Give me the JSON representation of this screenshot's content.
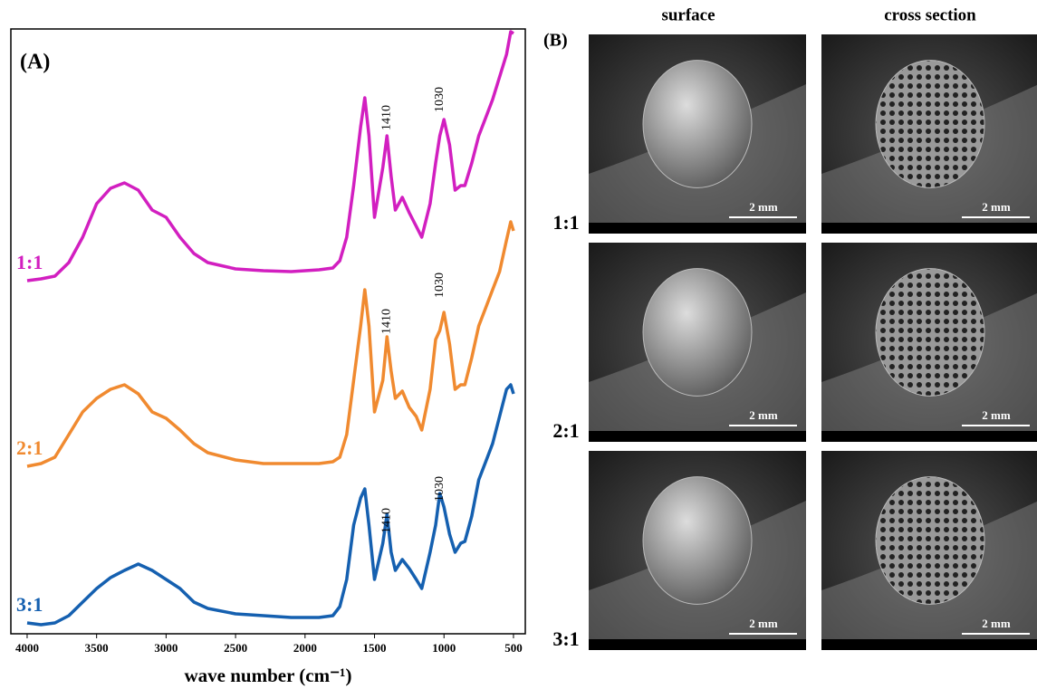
{
  "chart_data": {
    "type": "line",
    "panel_label": "(A)",
    "xlabel": "wave number (cm⁻¹)",
    "x": [
      4000,
      3900,
      3800,
      3700,
      3600,
      3500,
      3400,
      3300,
      3200,
      3100,
      3000,
      2900,
      2800,
      2700,
      2500,
      2300,
      2100,
      1900,
      1800,
      1750,
      1700,
      1650,
      1600,
      1570,
      1540,
      1500,
      1440,
      1410,
      1380,
      1350,
      1300,
      1250,
      1200,
      1160,
      1100,
      1060,
      1030,
      1000,
      960,
      920,
      880,
      850,
      800,
      750,
      700,
      650,
      600,
      550,
      520,
      500
    ],
    "series": [
      {
        "name": "1:1",
        "color": "#d21fc0",
        "values": [
          390,
          392,
          395,
          410,
          438,
          475,
          492,
          498,
          490,
          468,
          460,
          438,
          420,
          410,
          403,
          401,
          400,
          402,
          404,
          412,
          438,
          495,
          560,
          592,
          550,
          460,
          515,
          550,
          505,
          468,
          482,
          465,
          450,
          438,
          475,
          520,
          550,
          568,
          540,
          490,
          495,
          495,
          520,
          550,
          570,
          590,
          615,
          640,
          665,
          663
        ],
        "annotations": [
          {
            "text": "1410",
            "x": 1410,
            "y": 570
          },
          {
            "text": "1030",
            "x": 1030,
            "y": 590
          }
        ]
      },
      {
        "name": "2:1",
        "color": "#f08a30",
        "values": [
          185,
          188,
          195,
          220,
          245,
          260,
          270,
          275,
          265,
          245,
          238,
          225,
          210,
          200,
          192,
          188,
          188,
          188,
          190,
          195,
          220,
          280,
          340,
          380,
          340,
          245,
          280,
          328,
          290,
          260,
          268,
          250,
          240,
          225,
          270,
          325,
          335,
          355,
          320,
          270,
          275,
          275,
          305,
          340,
          360,
          380,
          400,
          435,
          455,
          445
        ],
        "annotations": [
          {
            "text": "1410",
            "x": 1410,
            "y": 345
          },
          {
            "text": "1030",
            "x": 1030,
            "y": 385
          }
        ]
      },
      {
        "name": "3:1",
        "color": "#1560b0",
        "values": [
          12,
          10,
          12,
          20,
          35,
          50,
          62,
          70,
          77,
          70,
          60,
          50,
          35,
          28,
          22,
          20,
          18,
          18,
          20,
          30,
          60,
          120,
          150,
          160,
          120,
          60,
          100,
          132,
          90,
          70,
          82,
          72,
          60,
          50,
          90,
          120,
          155,
          140,
          110,
          90,
          100,
          102,
          130,
          170,
          190,
          210,
          240,
          270,
          275,
          265
        ],
        "annotations": [
          {
            "text": "1410",
            "x": 1410,
            "y": 125
          },
          {
            "text": "1030",
            "x": 1030,
            "y": 160
          }
        ]
      }
    ],
    "xlim": [
      4117,
      415
    ],
    "ylim": [
      0,
      668
    ],
    "xticks": [
      4000,
      3500,
      3000,
      2500,
      2000,
      1500,
      1000,
      500
    ]
  },
  "panel_b": {
    "label": "(B)",
    "columns": [
      "surface",
      "cross section"
    ],
    "rows": [
      "1:1",
      "2:1",
      "3:1"
    ],
    "scale_bar": "2 mm"
  }
}
